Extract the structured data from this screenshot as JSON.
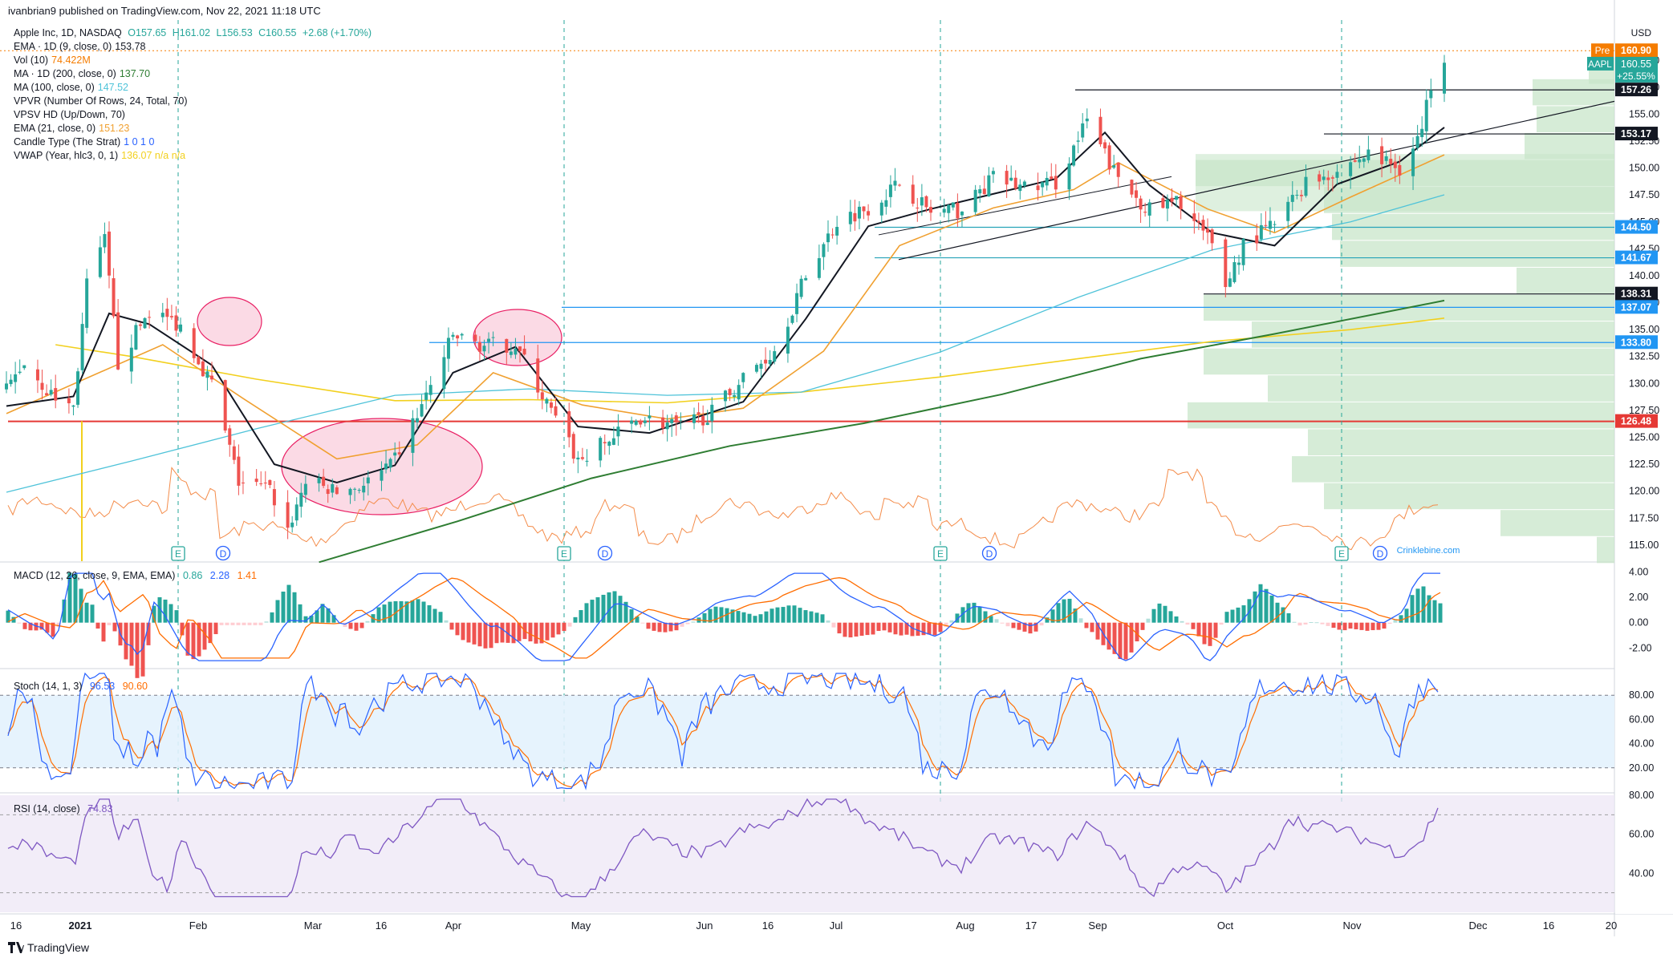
{
  "header": {
    "publisher_line": "ivanbrian9 published on TradingView.com, Nov 22, 2021 11:18 UTC"
  },
  "symbol_line": {
    "name": "Apple Inc, 1D, NASDAQ",
    "open": "O157.65",
    "high": "H161.02",
    "low": "L156.53",
    "close": "C160.55",
    "change": "+2.68 (+1.70%)"
  },
  "indicators": [
    {
      "label": "EMA · 1D (9, close, 0)",
      "value": "153.78",
      "color": "#131722"
    },
    {
      "label": "Vol (10)",
      "value": "74.422M",
      "color": "#f57c00"
    },
    {
      "label": "MA · 1D (200, close, 0)",
      "value": "137.70",
      "color": "#2e7d32"
    },
    {
      "label": "MA (100, close, 0)",
      "value": "147.52",
      "color": "#4fc3d9"
    },
    {
      "label": "VPVR (Number Of Rows, 24, Total, 70)",
      "value": "",
      "color": "#131722"
    },
    {
      "label": "VPSV HD (Up/Down, 70)",
      "value": "",
      "color": "#131722"
    },
    {
      "label": "EMA (21, close, 0)",
      "value": "151.23",
      "color": "#f0a030"
    },
    {
      "label": "Candle Type (The Strat)",
      "value": "1  0  1  0",
      "color": "#2962ff"
    },
    {
      "label": "VWAP (Year, hlc3, 0, 1)",
      "value": "136.07  n/a  n/a",
      "color": "#f2d01e"
    }
  ],
  "price_axis": {
    "currency": "USD",
    "ticks": [
      "160.00",
      "157.50",
      "155.00",
      "152.50",
      "150.00",
      "147.50",
      "145.00",
      "142.50",
      "140.00",
      "137.50",
      "135.00",
      "132.50",
      "130.00",
      "127.50",
      "125.00",
      "122.50",
      "120.00",
      "117.50",
      "115.00"
    ],
    "tags": [
      {
        "text": "Pre",
        "value": "160.90",
        "color": "#f57c00"
      },
      {
        "text": "AAPL",
        "value": "160.55",
        "sub": "+25.55%",
        "color": "#26a69a"
      },
      {
        "value": "157.26",
        "color": "#131722"
      },
      {
        "value": "153.17",
        "color": "#131722"
      },
      {
        "value": "144.50",
        "color": "#2196f3"
      },
      {
        "value": "141.67",
        "color": "#2196f3"
      },
      {
        "value": "138.31",
        "color": "#131722"
      },
      {
        "value": "137.07",
        "color": "#2196f3"
      },
      {
        "value": "133.80",
        "color": "#2196f3"
      },
      {
        "value": "126.48",
        "color": "#e53935"
      }
    ]
  },
  "macd_pane": {
    "title": "MACD (12, 26, close, 9, EMA, EMA)",
    "values": [
      "0.86",
      "2.28",
      "1.41"
    ],
    "ticks": [
      "4.00",
      "2.00",
      "0.00",
      "-2.00"
    ]
  },
  "stoch_pane": {
    "title": "Stoch (14, 1, 3)",
    "values": [
      "96.53",
      "90.60"
    ],
    "ticks": [
      "80.00",
      "60.00",
      "40.00",
      "20.00"
    ]
  },
  "rsi_pane": {
    "title": "RSI (14, close)",
    "values": [
      "74.83"
    ],
    "ticks": [
      "80.00",
      "60.00",
      "40.00"
    ]
  },
  "time_axis": {
    "labels": [
      "16",
      "2021",
      "Feb",
      "Mar",
      "16",
      "Apr",
      "May",
      "Jun",
      "16",
      "Jul",
      "Aug",
      "17",
      "Sep",
      "Oct",
      "Nov",
      "Dec",
      "16",
      "20"
    ]
  },
  "event_markers": [
    "E",
    "D",
    "E",
    "D",
    "E",
    "D",
    "E",
    "D"
  ],
  "watermark": "Crinklebine.com",
  "footer": {
    "brand": "TradingView"
  },
  "chart_data": {
    "type": "candlestick",
    "symbol": "AAPL",
    "timeframe": "1D",
    "start_date": "2021-01-04",
    "end_date": "2021-11-22",
    "close_path": [
      [
        "2021-01-04",
        129.4
      ],
      [
        "2021-01-08",
        132.0
      ],
      [
        "2021-01-14",
        128.9
      ],
      [
        "2021-01-19",
        127.8
      ],
      [
        "2021-01-22",
        139.1
      ],
      [
        "2021-01-26",
        143.2
      ],
      [
        "2021-01-29",
        131.9
      ],
      [
        "2021-02-05",
        136.8
      ],
      [
        "2021-02-12",
        135.4
      ],
      [
        "2021-02-19",
        129.9
      ],
      [
        "2021-02-25",
        120.9
      ],
      [
        "2021-03-04",
        120.1
      ],
      [
        "2021-03-08",
        116.4
      ],
      [
        "2021-03-12",
        121.0
      ],
      [
        "2021-03-19",
        119.9
      ],
      [
        "2021-03-25",
        120.6
      ],
      [
        "2021-03-31",
        122.2
      ],
      [
        "2021-04-07",
        127.9
      ],
      [
        "2021-04-14",
        134.4
      ],
      [
        "2021-04-21",
        133.5
      ],
      [
        "2021-04-28",
        133.6
      ],
      [
        "2021-05-05",
        128.1
      ],
      [
        "2021-05-12",
        122.8
      ],
      [
        "2021-05-19",
        124.7
      ],
      [
        "2021-05-26",
        126.9
      ],
      [
        "2021-06-04",
        125.9
      ],
      [
        "2021-06-11",
        127.3
      ],
      [
        "2021-06-18",
        130.5
      ],
      [
        "2021-06-25",
        133.1
      ],
      [
        "2021-07-02",
        140.0
      ],
      [
        "2021-07-09",
        145.1
      ],
      [
        "2021-07-16",
        146.4
      ],
      [
        "2021-07-23",
        148.6
      ],
      [
        "2021-07-30",
        145.9
      ],
      [
        "2021-08-06",
        146.1
      ],
      [
        "2021-08-13",
        149.1
      ],
      [
        "2021-08-20",
        148.2
      ],
      [
        "2021-08-27",
        148.6
      ],
      [
        "2021-09-03",
        154.3
      ],
      [
        "2021-09-10",
        148.9
      ],
      [
        "2021-09-17",
        146.1
      ],
      [
        "2021-09-24",
        146.9
      ],
      [
        "2021-10-01",
        142.7
      ],
      [
        "2021-10-04",
        139.1
      ],
      [
        "2021-10-08",
        142.9
      ],
      [
        "2021-10-15",
        144.8
      ],
      [
        "2021-10-22",
        148.7
      ],
      [
        "2021-10-29",
        149.8
      ],
      [
        "2021-11-05",
        151.3
      ],
      [
        "2021-11-12",
        150.0
      ],
      [
        "2021-11-17",
        153.5
      ],
      [
        "2021-11-19",
        157.9
      ],
      [
        "2021-11-22",
        160.55
      ]
    ],
    "ema9_path": [
      [
        "2021-01-04",
        127.9
      ],
      [
        "2021-01-19",
        128.8
      ],
      [
        "2021-01-27",
        136.5
      ],
      [
        "2021-02-05",
        135.5
      ],
      [
        "2021-02-19",
        131.7
      ],
      [
        "2021-03-05",
        122.5
      ],
      [
        "2021-03-19",
        120.8
      ],
      [
        "2021-04-01",
        122.4
      ],
      [
        "2021-04-14",
        131.0
      ],
      [
        "2021-04-28",
        133.4
      ],
      [
        "2021-05-12",
        126.0
      ],
      [
        "2021-05-28",
        125.4
      ],
      [
        "2021-06-18",
        128.3
      ],
      [
        "2021-07-02",
        136.0
      ],
      [
        "2021-07-16",
        144.6
      ],
      [
        "2021-07-30",
        146.2
      ],
      [
        "2021-08-13",
        147.6
      ],
      [
        "2021-08-27",
        149.0
      ],
      [
        "2021-09-07",
        153.3
      ],
      [
        "2021-09-17",
        148.4
      ],
      [
        "2021-10-01",
        144.0
      ],
      [
        "2021-10-15",
        142.8
      ],
      [
        "2021-10-29",
        148.5
      ],
      [
        "2021-11-12",
        150.6
      ],
      [
        "2021-11-22",
        153.78
      ]
    ],
    "ema21_path": [
      [
        "2021-01-04",
        127.2
      ],
      [
        "2021-01-22",
        130.5
      ],
      [
        "2021-02-08",
        133.6
      ],
      [
        "2021-02-26",
        128.6
      ],
      [
        "2021-03-19",
        123.0
      ],
      [
        "2021-04-06",
        124.3
      ],
      [
        "2021-04-23",
        131.0
      ],
      [
        "2021-05-13",
        128.0
      ],
      [
        "2021-06-01",
        126.7
      ],
      [
        "2021-06-18",
        127.7
      ],
      [
        "2021-07-06",
        133.0
      ],
      [
        "2021-07-23",
        142.8
      ],
      [
        "2021-08-13",
        146.3
      ],
      [
        "2021-08-31",
        148.0
      ],
      [
        "2021-09-10",
        150.5
      ],
      [
        "2021-09-30",
        146.2
      ],
      [
        "2021-10-15",
        144.0
      ],
      [
        "2021-11-01",
        147.3
      ],
      [
        "2021-11-22",
        151.23
      ]
    ],
    "ma100_path": [
      [
        "2021-01-04",
        119.9
      ],
      [
        "2021-02-01",
        122.8
      ],
      [
        "2021-03-01",
        125.8
      ],
      [
        "2021-04-01",
        128.9
      ],
      [
        "2021-05-01",
        129.5
      ],
      [
        "2021-06-01",
        128.9
      ],
      [
        "2021-07-01",
        129.2
      ],
      [
        "2021-08-01",
        132.9
      ],
      [
        "2021-09-01",
        138.0
      ],
      [
        "2021-10-01",
        142.4
      ],
      [
        "2021-11-01",
        145.0
      ],
      [
        "2021-11-22",
        147.52
      ]
    ],
    "ma200_path": [
      [
        "2021-03-15",
        113.4
      ],
      [
        "2021-04-15",
        117.2
      ],
      [
        "2021-05-15",
        121.2
      ],
      [
        "2021-06-15",
        124.2
      ],
      [
        "2021-07-15",
        126.3
      ],
      [
        "2021-08-15",
        129.0
      ],
      [
        "2021-09-15",
        132.3
      ],
      [
        "2021-10-15",
        134.6
      ],
      [
        "2021-11-22",
        137.7
      ]
    ],
    "vwap_path": [
      [
        "2021-01-15",
        133.6
      ],
      [
        "2021-02-01",
        132.5
      ],
      [
        "2021-03-01",
        130.4
      ],
      [
        "2021-04-01",
        128.4
      ],
      [
        "2021-05-01",
        128.5
      ],
      [
        "2021-06-01",
        128.2
      ],
      [
        "2021-07-01",
        129.2
      ],
      [
        "2021-08-01",
        130.6
      ],
      [
        "2021-09-01",
        132.3
      ],
      [
        "2021-10-01",
        133.9
      ],
      [
        "2021-11-01",
        135.0
      ],
      [
        "2021-11-22",
        136.07
      ]
    ],
    "horizontal_levels": [
      157.26,
      153.17,
      144.5,
      141.67,
      138.31,
      137.07,
      133.8,
      126.48
    ],
    "ylim": [
      113.5,
      163.0
    ],
    "macd": {
      "macd": 2.28,
      "signal": 1.41,
      "histogram": 0.86,
      "ylim": [
        -3.5,
        4.6
      ]
    },
    "stoch": {
      "k": 96.53,
      "d": 90.6,
      "ylim": [
        0,
        100
      ]
    },
    "rsi": {
      "value": 74.83,
      "ylim": [
        20,
        80
      ]
    }
  }
}
